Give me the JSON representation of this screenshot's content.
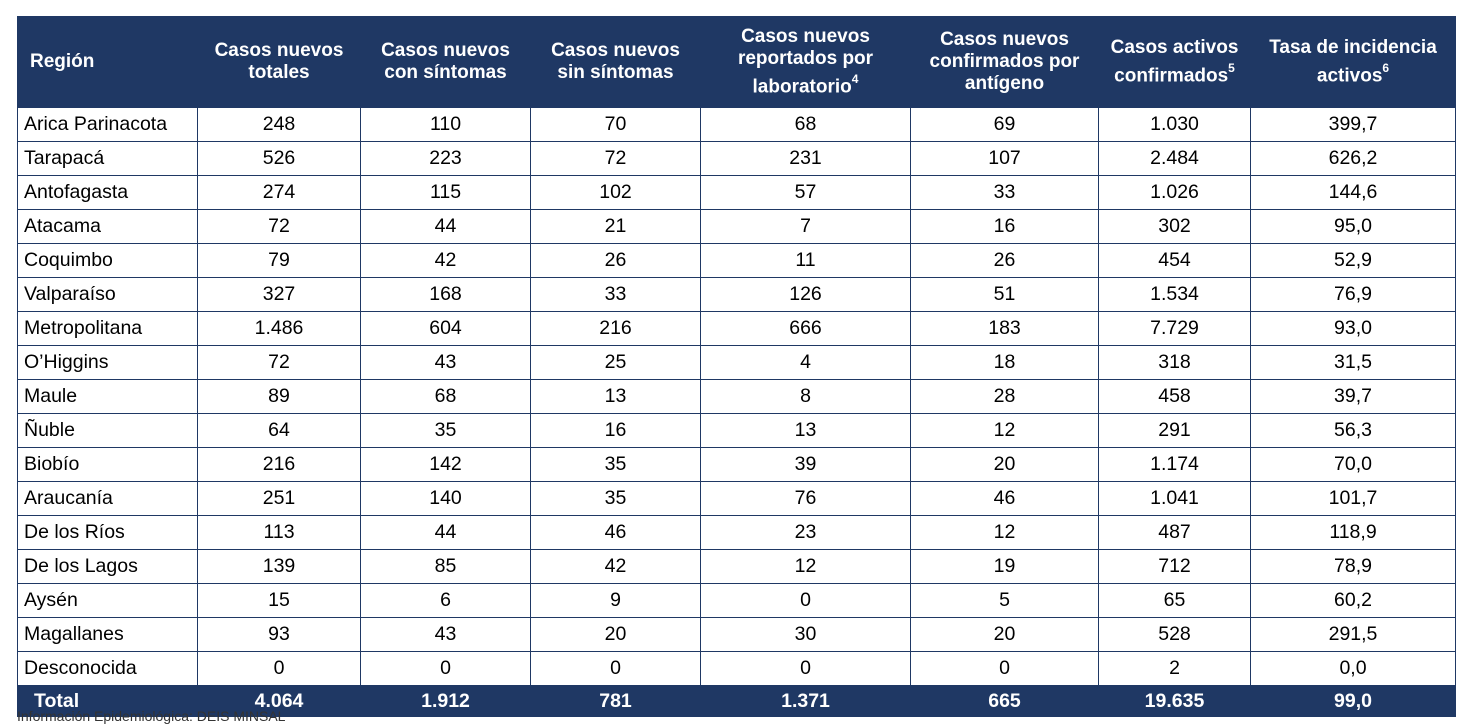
{
  "table": {
    "headers": [
      {
        "text": "Región",
        "sup": ""
      },
      {
        "text": "Casos nuevos totales",
        "sup": ""
      },
      {
        "text": "Casos nuevos con síntomas",
        "sup": ""
      },
      {
        "text": "Casos nuevos sin síntomas",
        "sup": ""
      },
      {
        "text": "Casos nuevos reportados por laboratorio",
        "sup": "4"
      },
      {
        "text": "Casos nuevos confirmados por antígeno",
        "sup": ""
      },
      {
        "text": "Casos activos confirmados",
        "sup": "5"
      },
      {
        "text": "Tasa de incidencia activos",
        "sup": "6"
      }
    ],
    "rows": [
      [
        "Arica Parinacota",
        "248",
        "110",
        "70",
        "68",
        "69",
        "1.030",
        "399,7"
      ],
      [
        "Tarapacá",
        "526",
        "223",
        "72",
        "231",
        "107",
        "2.484",
        "626,2"
      ],
      [
        "Antofagasta",
        "274",
        "115",
        "102",
        "57",
        "33",
        "1.026",
        "144,6"
      ],
      [
        "Atacama",
        "72",
        "44",
        "21",
        "7",
        "16",
        "302",
        "95,0"
      ],
      [
        "Coquimbo",
        "79",
        "42",
        "26",
        "11",
        "26",
        "454",
        "52,9"
      ],
      [
        "Valparaíso",
        "327",
        "168",
        "33",
        "126",
        "51",
        "1.534",
        "76,9"
      ],
      [
        "Metropolitana",
        "1.486",
        "604",
        "216",
        "666",
        "183",
        "7.729",
        "93,0"
      ],
      [
        "O’Higgins",
        "72",
        "43",
        "25",
        "4",
        "18",
        "318",
        "31,5"
      ],
      [
        "Maule",
        "89",
        "68",
        "13",
        "8",
        "28",
        "458",
        "39,7"
      ],
      [
        "Ñuble",
        "64",
        "35",
        "16",
        "13",
        "12",
        "291",
        "56,3"
      ],
      [
        "Biobío",
        "216",
        "142",
        "35",
        "39",
        "20",
        "1.174",
        "70,0"
      ],
      [
        "Araucanía",
        "251",
        "140",
        "35",
        "76",
        "46",
        "1.041",
        "101,7"
      ],
      [
        "De los Ríos",
        "113",
        "44",
        "46",
        "23",
        "12",
        "487",
        "118,9"
      ],
      [
        "De los Lagos",
        "139",
        "85",
        "42",
        "12",
        "19",
        "712",
        "78,9"
      ],
      [
        "Aysén",
        "15",
        "6",
        "9",
        "0",
        "5",
        "65",
        "60,2"
      ],
      [
        "Magallanes",
        "93",
        "43",
        "20",
        "30",
        "20",
        "528",
        "291,5"
      ],
      [
        "Desconocida",
        "0",
        "0",
        "0",
        "0",
        "0",
        "2",
        "0,0"
      ]
    ],
    "total": [
      "Total",
      "4.064",
      "1.912",
      "781",
      "1.371",
      "665",
      "19.635",
      "99,0"
    ]
  },
  "footnote": "Información Epidemiológica: DEIS MINSAL",
  "colors": {
    "header_bg": "#1f3864",
    "header_text": "#ffffff",
    "border": "#1f3864"
  }
}
